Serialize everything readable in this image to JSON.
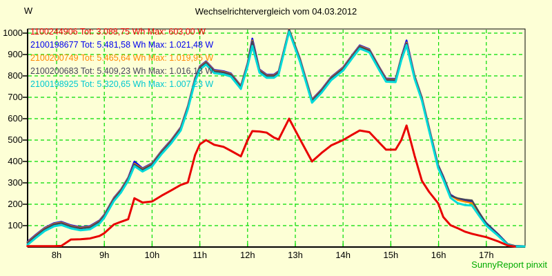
{
  "title": "Wechselrichtervergleich vom 04.03.2012",
  "y_unit_label": "W",
  "watermark": "SunnyReport pinxit",
  "colors": {
    "background": "#FDFFD6",
    "grid": "#00DC00",
    "axis": "#000000",
    "watermark": "#00AA00",
    "series_red": "#E80000",
    "series_blue": "#0000EE",
    "series_orange": "#FF8800",
    "series_dark": "#44445A",
    "series_cyan": "#00DADA"
  },
  "legend": [
    {
      "serial": "1100244906",
      "text": "1100244906 Tot: 3.088,75 Wh Max: 603,00 W",
      "color": "#E80000"
    },
    {
      "serial": "2100198677",
      "text": "2100198677 Tot: 5.481,58 Wh Max: 1.021,48 W",
      "color": "#0000EE"
    },
    {
      "serial": "2100200749",
      "text": "2100200749 Tot: 5.465,64 Wh Max: 1.019,95 W",
      "color": "#FF8800"
    },
    {
      "serial": "2100200683",
      "text": "2100200683 Tot: 5.409,23 Wh Max: 1.016,13 W",
      "color": "#44445A"
    },
    {
      "serial": "2100198925",
      "text": "2100198925 Tot: 5.320,65 Wh Max: 1.007,23 W",
      "color": "#00C8D0"
    }
  ],
  "chart_data": {
    "type": "line",
    "title": "Wechselrichtervergleich vom 04.03.2012",
    "ylabel": "W",
    "xlabel": "",
    "ylim": [
      0,
      1020
    ],
    "xlim_hours": [
      7.39,
      17.82
    ],
    "grid": true,
    "legend_position": "top-left-inside",
    "yticks": [
      100,
      200,
      300,
      400,
      500,
      600,
      700,
      800,
      900,
      1000
    ],
    "xticks": [
      {
        "value": 8,
        "label": "8h"
      },
      {
        "value": 9,
        "label": "9h"
      },
      {
        "value": 10,
        "label": "10h"
      },
      {
        "value": 11,
        "label": "11h"
      },
      {
        "value": 12,
        "label": "12h"
      },
      {
        "value": 13,
        "label": "13h"
      },
      {
        "value": 14,
        "label": "14h"
      },
      {
        "value": 15,
        "label": "15h"
      },
      {
        "value": 16,
        "label": "16h"
      },
      {
        "value": 17,
        "label": "17h"
      }
    ],
    "x_hours": [
      7.39,
      7.55,
      7.75,
      7.95,
      8.1,
      8.3,
      8.5,
      8.7,
      8.9,
      9.0,
      9.2,
      9.35,
      9.5,
      9.63,
      9.8,
      10.0,
      10.2,
      10.4,
      10.6,
      10.75,
      10.9,
      11.0,
      11.13,
      11.3,
      11.5,
      11.65,
      11.86,
      12.0,
      12.1,
      12.25,
      12.4,
      12.55,
      12.65,
      12.87,
      13.1,
      13.35,
      13.55,
      13.75,
      14.0,
      14.2,
      14.35,
      14.55,
      14.75,
      14.9,
      15.1,
      15.22,
      15.33,
      15.5,
      15.65,
      15.8,
      15.99,
      16.1,
      16.25,
      16.4,
      16.55,
      16.7,
      16.85,
      17.0,
      17.25,
      17.45,
      17.6,
      17.8
    ],
    "series": [
      {
        "name": "1100244906",
        "color": "#E80000",
        "width": 3,
        "tot_wh": "3.088,75",
        "max_w": "603,00",
        "values": [
          4,
          4,
          4,
          4,
          5,
          35,
          36,
          40,
          52,
          65,
          105,
          118,
          130,
          228,
          208,
          213,
          240,
          265,
          290,
          302,
          430,
          480,
          500,
          478,
          468,
          450,
          424,
          500,
          542,
          540,
          535,
          512,
          503,
          600,
          503,
          400,
          440,
          475,
          500,
          526,
          545,
          537,
          490,
          455,
          455,
          500,
          568,
          425,
          310,
          258,
          205,
          140,
          102,
          88,
          72,
          62,
          54,
          46,
          26,
          7,
          2,
          null
        ]
      },
      {
        "name": "2100198677",
        "color": "#0000EE",
        "width": 2.5,
        "tot_wh": "5.481,58",
        "max_w": "1.021,48",
        "values": [
          25,
          55,
          90,
          112,
          118,
          102,
          93,
          98,
          125,
          152,
          230,
          270,
          325,
          400,
          368,
          392,
          450,
          500,
          560,
          660,
          790,
          845,
          868,
          828,
          822,
          812,
          754,
          860,
          975,
          830,
          806,
          806,
          822,
          1021,
          880,
          690,
          737,
          795,
          840,
          900,
          943,
          925,
          845,
          788,
          786,
          888,
          966,
          800,
          700,
          560,
          385,
          330,
          245,
          225,
          218,
          210,
          158,
          112,
          60,
          14,
          5,
          4
        ]
      },
      {
        "name": "2100200749",
        "color": "#FF8800",
        "width": 2.5,
        "tot_wh": "5.465,64",
        "max_w": "1.019,95",
        "values": [
          22,
          52,
          87,
          109,
          115,
          99,
          90,
          95,
          122,
          149,
          227,
          267,
          322,
          390,
          365,
          389,
          447,
          497,
          557,
          657,
          787,
          842,
          865,
          825,
          819,
          809,
          751,
          857,
          966,
          827,
          803,
          803,
          819,
          1019,
          877,
          687,
          734,
          792,
          837,
          897,
          940,
          922,
          842,
          785,
          783,
          885,
          956,
          797,
          697,
          557,
          382,
          327,
          242,
          220,
          212,
          206,
          155,
          109,
          57,
          12,
          4,
          3
        ]
      },
      {
        "name": "2100200683",
        "color": "#44445A",
        "width": 2.5,
        "tot_wh": "5.409,23",
        "max_w": "1.016,13",
        "values": [
          19,
          49,
          84,
          106,
          112,
          96,
          87,
          92,
          119,
          146,
          224,
          264,
          319,
          386,
          362,
          386,
          444,
          494,
          554,
          654,
          784,
          839,
          862,
          822,
          816,
          806,
          748,
          854,
          962,
          824,
          800,
          800,
          816,
          1016,
          874,
          684,
          731,
          789,
          834,
          894,
          937,
          919,
          839,
          782,
          780,
          882,
          952,
          794,
          694,
          554,
          380,
          326,
          240,
          228,
          222,
          218,
          162,
          110,
          58,
          13,
          5,
          4
        ]
      },
      {
        "name": "2100198925",
        "color": "#00DADA",
        "width": 3,
        "tot_wh": "5.320,65",
        "max_w": "1.007,23",
        "values": [
          10,
          40,
          75,
          97,
          103,
          87,
          78,
          83,
          110,
          137,
          215,
          255,
          310,
          378,
          353,
          377,
          435,
          485,
          545,
          645,
          775,
          830,
          853,
          813,
          807,
          797,
          739,
          845,
          940,
          815,
          791,
          791,
          807,
          1007,
          865,
          675,
          722,
          780,
          825,
          885,
          928,
          910,
          830,
          773,
          771,
          873,
          944,
          785,
          685,
          545,
          370,
          315,
          230,
          205,
          196,
          194,
          146,
          100,
          52,
          10,
          3,
          3
        ]
      }
    ]
  }
}
